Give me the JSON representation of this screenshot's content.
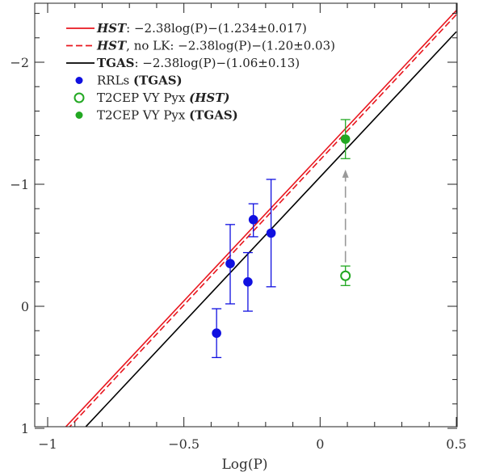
{
  "chart_data": {
    "type": "scatter",
    "xlabel": "Log(P)",
    "ylabel": "",
    "xlim": [
      -1.05,
      0.5
    ],
    "ylim": [
      1.0,
      -2.45
    ],
    "y_inverted": true,
    "grid": false,
    "legend_position": "top-left",
    "x_ticks": [
      -1,
      -0.5,
      0,
      0.5
    ],
    "x_tick_labels": [
      "−1",
      "−0.5",
      "0",
      "0.5"
    ],
    "y_ticks": [
      1,
      0,
      -1,
      -2
    ],
    "y_tick_labels": [
      "1",
      "0",
      "−1",
      "−2"
    ],
    "lines": [
      {
        "id": "hst",
        "prefix": "HST",
        "text": ": −2.38log(P)−(1.234±0.017)",
        "slope": -2.38,
        "intercept": -1.234,
        "color": "#e8171f",
        "dash": "solid"
      },
      {
        "id": "hst-nolk",
        "prefix": "HST",
        "text": ", no LK: −2.38log(P)−(1.20±0.03)",
        "slope": -2.38,
        "intercept": -1.2,
        "color": "#e8171f",
        "dash": "dashed"
      },
      {
        "id": "tgas",
        "prefix": "TGAS",
        "text": ": −2.38log(P)−(1.06±0.13)",
        "slope": -2.38,
        "intercept": -1.06,
        "color": "#000000",
        "dash": "solid"
      }
    ],
    "series": [
      {
        "id": "rrl",
        "label_plain": "RRLs ",
        "label_bold": "(TGAS)",
        "label_style": "bold",
        "color": "#1010e0",
        "marker": "filled-circle",
        "points": [
          {
            "x": -0.38,
            "y": 0.22,
            "yerr_low": 0.2,
            "yerr_high": 0.2
          },
          {
            "x": -0.33,
            "y": -0.35,
            "yerr_low": 0.33,
            "yerr_high": 0.32
          },
          {
            "x": -0.265,
            "y": -0.2,
            "yerr_low": 0.24,
            "yerr_high": 0.24
          },
          {
            "x": -0.245,
            "y": -0.71,
            "yerr_low": 0.14,
            "yerr_high": 0.13
          },
          {
            "x": -0.18,
            "y": -0.6,
            "yerr_low": 0.44,
            "yerr_high": 0.44
          }
        ]
      },
      {
        "id": "t2cep-hst",
        "label_plain": "T2CEP VY Pyx ",
        "label_bold": "(HST)",
        "label_style": "italic",
        "color": "#22a822",
        "marker": "open-circle",
        "points": [
          {
            "x": 0.093,
            "y": -0.25,
            "yerr_low": 0.08,
            "yerr_high": 0.08
          }
        ]
      },
      {
        "id": "t2cep-tgas",
        "label_plain": "T2CEP VY Pyx ",
        "label_bold": "(TGAS)",
        "label_style": "bold",
        "color": "#22a822",
        "marker": "filled-circle",
        "points": [
          {
            "x": 0.093,
            "y": -1.37,
            "yerr_low": 0.16,
            "yerr_high": 0.16
          }
        ]
      }
    ],
    "annotations": [
      {
        "type": "arrow",
        "x": 0.093,
        "y_from": -0.36,
        "y_to": -1.12,
        "color": "#999999",
        "dash": "dashed"
      }
    ]
  }
}
